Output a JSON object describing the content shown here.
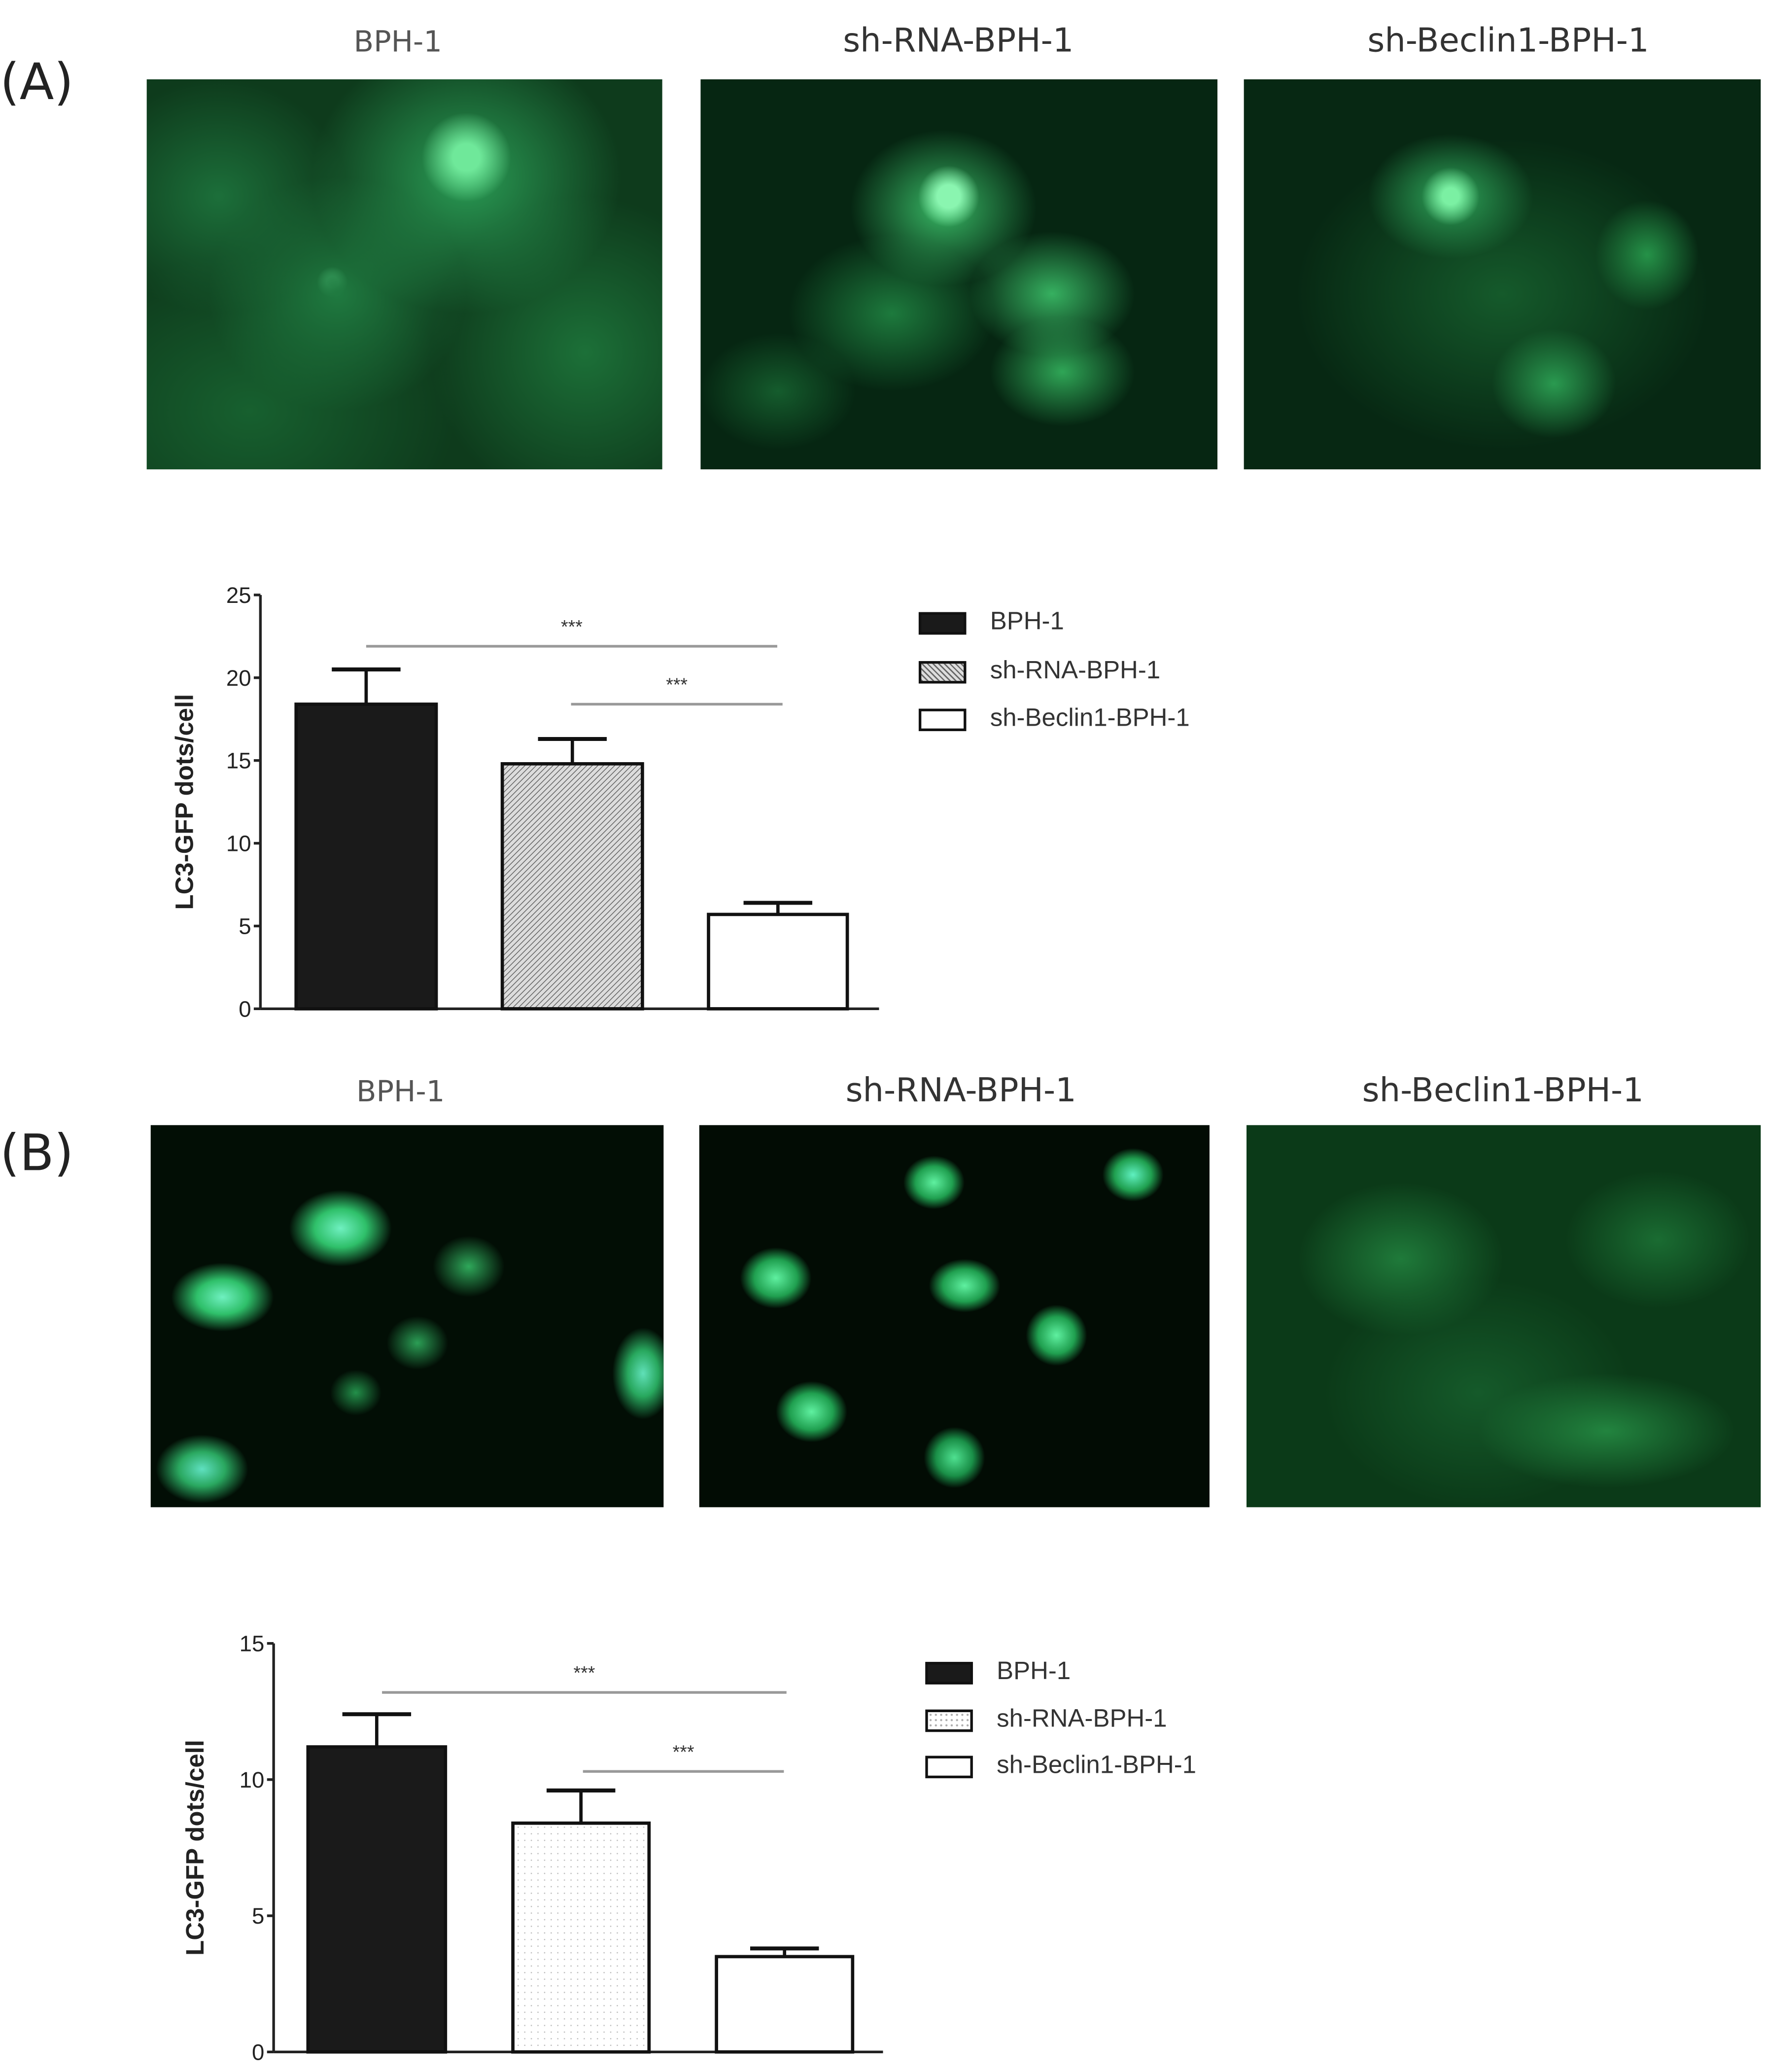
{
  "panels": [
    {
      "label": "(A)",
      "image_titles": [
        "BPH-1",
        "sh-RNA-BPH-1",
        "sh-Beclin1-BPH-1"
      ]
    },
    {
      "label": "(B)",
      "image_titles": [
        "BPH-1",
        "sh-RNA-BPH-1",
        "sh-Beclin1-BPH-1"
      ]
    }
  ],
  "chart_data": [
    {
      "type": "bar",
      "panel": "(A)",
      "categories": [
        "BPH-1",
        "sh-RNA-BPH-1",
        "sh-Beclin1-BPH-1"
      ],
      "values": [
        18.4,
        14.8,
        5.7
      ],
      "error_upper": [
        20.5,
        16.3,
        6.4
      ],
      "fills": [
        "solid-black",
        "diagonal-hatch-gray",
        "white"
      ],
      "ylabel": "LC3-GFP dots/cell",
      "xlabel": "",
      "ylim": [
        0,
        25
      ],
      "yticks": [
        "0",
        "5",
        "10",
        "15",
        "20",
        "25"
      ],
      "significance": [
        {
          "from": "BPH-1",
          "to": "sh-Beclin1-BPH-1",
          "label": "***",
          "level": 21.9
        },
        {
          "from": "sh-RNA-BPH-1",
          "to": "sh-Beclin1-BPH-1",
          "label": "***",
          "level": 18.4
        }
      ],
      "legend": [
        "BPH-1",
        "sh-RNA-BPH-1",
        "sh-Beclin1-BPH-1"
      ],
      "legend_position": "right",
      "grid": false
    },
    {
      "type": "bar",
      "panel": "(B)",
      "categories": [
        "BPH-1",
        "sh-RNA-BPH-1",
        "sh-Beclin1-BPH-1"
      ],
      "values": [
        11.2,
        8.4,
        3.5
      ],
      "error_upper": [
        12.4,
        9.6,
        3.8
      ],
      "fills": [
        "solid-black",
        "sparse-dots",
        "white"
      ],
      "ylabel": "LC3-GFP dots/cell",
      "xlabel": "",
      "ylim": [
        0,
        15
      ],
      "yticks": [
        "0",
        "5",
        "10",
        "15"
      ],
      "significance": [
        {
          "from": "BPH-1",
          "to": "sh-Beclin1-BPH-1",
          "label": "***",
          "level": 13.2
        },
        {
          "from": "sh-RNA-BPH-1",
          "to": "sh-Beclin1-BPH-1",
          "label": "***",
          "level": 10.3
        }
      ],
      "legend": [
        "BPH-1",
        "sh-RNA-BPH-1",
        "sh-Beclin1-BPH-1"
      ],
      "legend_position": "right",
      "grid": false
    }
  ],
  "colors": {
    "bar_dark": "#1a1a1a",
    "hatch": "#9a9a9a",
    "sig_line": "#999999",
    "gfp_green": "#2fc06a"
  }
}
